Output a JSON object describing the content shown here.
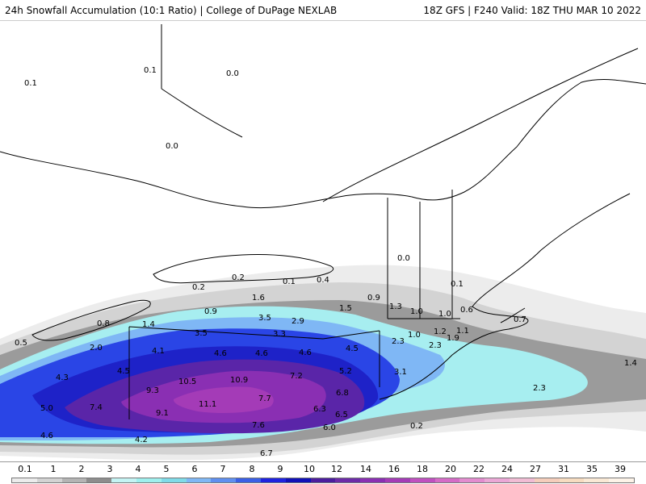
{
  "header": {
    "title": "24h Snowfall Accumulation (10:1 Ratio) | College of DuPage NEXLAB",
    "run_info": "18Z GFS | F240 Valid: 18Z THU MAR 10 2022"
  },
  "colors": {
    "background": "#ffffff",
    "lake": "#ffffff",
    "borders": "#000000",
    "counties": "#bdbdbd"
  },
  "map_labels": [
    "0.1",
    "0.1",
    "0.0",
    "0.0",
    "0.2",
    "0.2",
    "0.1",
    "0.4",
    "0.0",
    "0.1",
    "1.6",
    "0.9",
    "1.5",
    "0.9",
    "1.3",
    "1.0",
    "1.0",
    "0.6",
    "0.7",
    "0.8",
    "1.4",
    "3.5",
    "2.9",
    "0.5",
    "2.0",
    "3.5",
    "3.3",
    "1.0",
    "1.2",
    "1.1",
    "1.9",
    "2.3",
    "2.3",
    "4.1",
    "4.6",
    "4.6",
    "4.6",
    "4.5",
    "4.3",
    "4.5",
    "5.2",
    "3.1",
    "1.4",
    "10.5",
    "10.9",
    "7.2",
    "6.8",
    "9.3",
    "2.3",
    "5.0",
    "7.4",
    "11.1",
    "7.7",
    "9.1",
    "6.3",
    "6.5",
    "7.6",
    "6.0",
    "0.2",
    "4.6",
    "4.2",
    "6.7"
  ],
  "legend": {
    "ticks": [
      "0.1",
      "1",
      "2",
      "3",
      "4",
      "5",
      "6",
      "7",
      "8",
      "9",
      "10",
      "12",
      "14",
      "16",
      "18",
      "20",
      "22",
      "24",
      "27",
      "31",
      "35",
      "39"
    ],
    "colors": [
      "#ececec",
      "#d3d3d3",
      "#b4b4b4",
      "#8d8d8d",
      "#c4f4f4",
      "#9ef0ee",
      "#7fdbe8",
      "#7fb7f5",
      "#5f8ff0",
      "#3a5fe6",
      "#1e22e0",
      "#1010b8",
      "#4b1d9e",
      "#6c2ba8",
      "#8a2fb3",
      "#a43bb7",
      "#c050c0",
      "#d56bc7",
      "#e38ccf",
      "#eba7d6",
      "#f1bcd4",
      "#f5cdbb",
      "#f7dcc0",
      "#fae9d5",
      "#fdf3e8"
    ]
  }
}
